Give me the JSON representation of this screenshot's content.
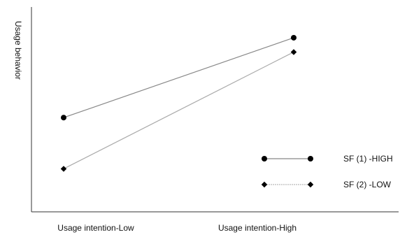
{
  "chart_data": {
    "type": "line",
    "title": "",
    "xlabel": "",
    "ylabel": "Usage behavior",
    "categories": [
      "Usage intention-Low",
      "Usage intention-High"
    ],
    "ylim": [
      0,
      100
    ],
    "grid": false,
    "legend_position": "bottom-right",
    "series": [
      {
        "name": "SF (1) -HIGH",
        "values": [
          46,
          85
        ],
        "marker": "circle",
        "color": "#888888"
      },
      {
        "name": "SF (2) -LOW",
        "values": [
          21,
          78
        ],
        "marker": "diamond",
        "color": "#aaaaaa"
      }
    ]
  }
}
